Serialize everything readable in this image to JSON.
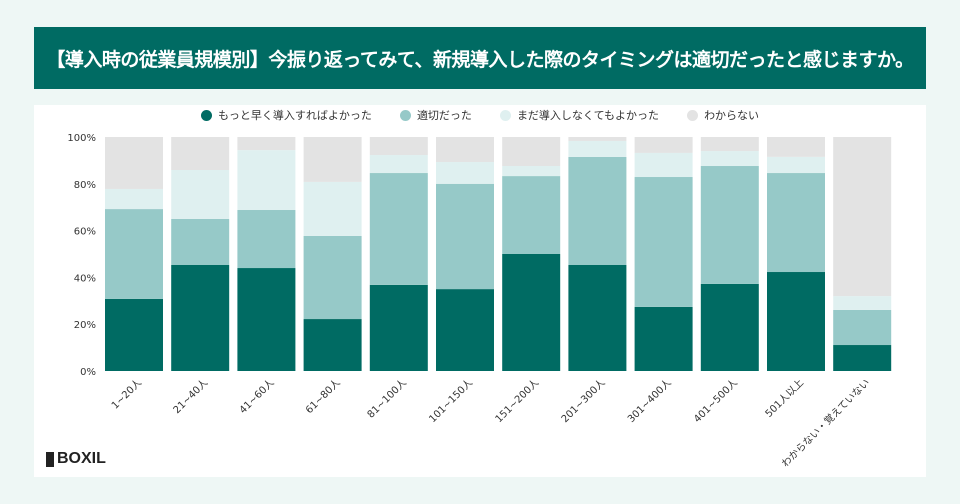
{
  "title": "【導入時の従業員規模別】今振り返ってみて、新規導入した際のタイミングは適切だったと感じますか。",
  "logo": "BOXIL",
  "chart_data": {
    "type": "bar",
    "stacked": true,
    "categories": [
      "1~20人",
      "21~40人",
      "41~60人",
      "61~80人",
      "81~100人",
      "101~150人",
      "151~200人",
      "201~300人",
      "301~400人",
      "401~500人",
      "501人以上",
      "わからない・覚えていない"
    ],
    "series": [
      {
        "name": "もっと早く導入すればよかった",
        "color": "#006b63",
        "values": [
          30.8,
          45.3,
          44.0,
          22.2,
          36.8,
          35.0,
          50.0,
          45.3,
          27.4,
          37.2,
          42.3,
          11.1
        ]
      },
      {
        "name": "適切だった",
        "color": "#96c9c8",
        "values": [
          38.4,
          19.7,
          24.8,
          35.5,
          47.8,
          45.0,
          33.3,
          46.2,
          55.5,
          50.4,
          42.3,
          15.0
        ]
      },
      {
        "name": "まだ導入しなくてもよかった",
        "color": "#dff0f0",
        "values": [
          8.6,
          20.9,
          25.6,
          23.1,
          7.7,
          9.3,
          4.3,
          6.8,
          10.3,
          6.4,
          6.9,
          5.9
        ]
      },
      {
        "name": "わからない",
        "color": "#e3e3e3",
        "values": [
          22.2,
          14.1,
          5.6,
          19.2,
          7.7,
          10.7,
          12.4,
          1.7,
          6.8,
          6.0,
          8.5,
          68.0
        ]
      }
    ],
    "yticks": [
      "0%",
      "20%",
      "40%",
      "60%",
      "80%",
      "100%"
    ],
    "ylim": [
      0,
      100
    ],
    "legend": "top"
  }
}
